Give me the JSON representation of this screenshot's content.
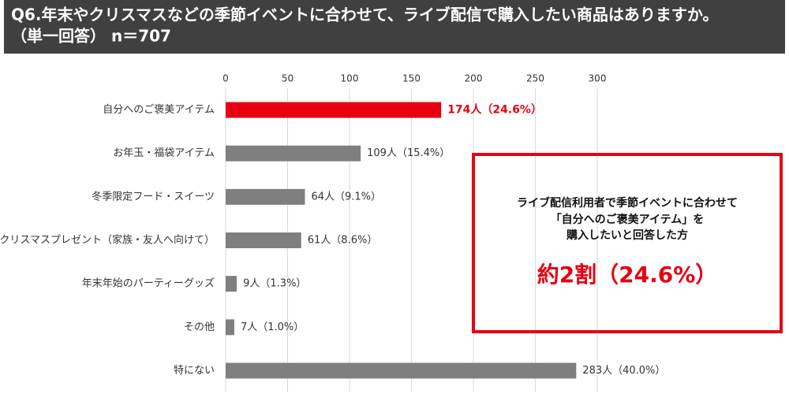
{
  "chart_data": {
    "type": "barh",
    "title": "Q6.年末やクリスマスなどの季節イベントに合わせて、ライブ配信で購入したい商品はありますか。",
    "subtitle": "（単一回答） n＝707",
    "categories": [
      "自分へのご褒美アイテム",
      "お年玉・福袋アイテム",
      "冬季限定フード・スイーツ",
      "クリスマスプレゼント（家族・友人へ向けて）",
      "年末年始のパーティーグッズ",
      "その他",
      "特にない"
    ],
    "values": [
      174,
      109,
      64,
      61,
      9,
      7,
      283
    ],
    "value_labels": [
      "174人（24.6%）",
      "109人（15.4%）",
      "64人（9.1%）",
      "61人（8.6%）",
      "9人（1.3%）",
      "7人（1.0%）",
      "283人（40.0%）"
    ],
    "colors": [
      "#e60012",
      "#7f7f7f",
      "#7f7f7f",
      "#7f7f7f",
      "#7f7f7f",
      "#7f7f7f",
      "#7f7f7f"
    ],
    "label_colors": [
      "#e60012",
      "#333333",
      "#333333",
      "#333333",
      "#333333",
      "#333333",
      "#333333"
    ],
    "xlim": [
      0,
      300
    ],
    "xticks": [
      0,
      50,
      100,
      150,
      200,
      250,
      300
    ],
    "grid": true,
    "annotations": [
      "ライブ配信利用者で季節イベントに合わせて",
      "「自分へのご褒美アイテム」を",
      "購入したいと回答した方",
      "約2割（24.6%）"
    ]
  }
}
